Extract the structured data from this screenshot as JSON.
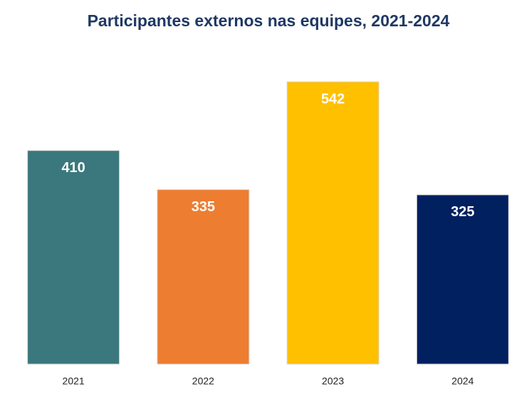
{
  "chart_data": {
    "type": "bar",
    "title": "Participantes externos nas equipes, 2021-2024",
    "categories": [
      "2021",
      "2022",
      "2023",
      "2024"
    ],
    "values": [
      410,
      335,
      542,
      325
    ],
    "colors": [
      "#3a787d",
      "#ed7d31",
      "#ffc000",
      "#002060"
    ],
    "ylim": [
      0,
      600
    ]
  }
}
